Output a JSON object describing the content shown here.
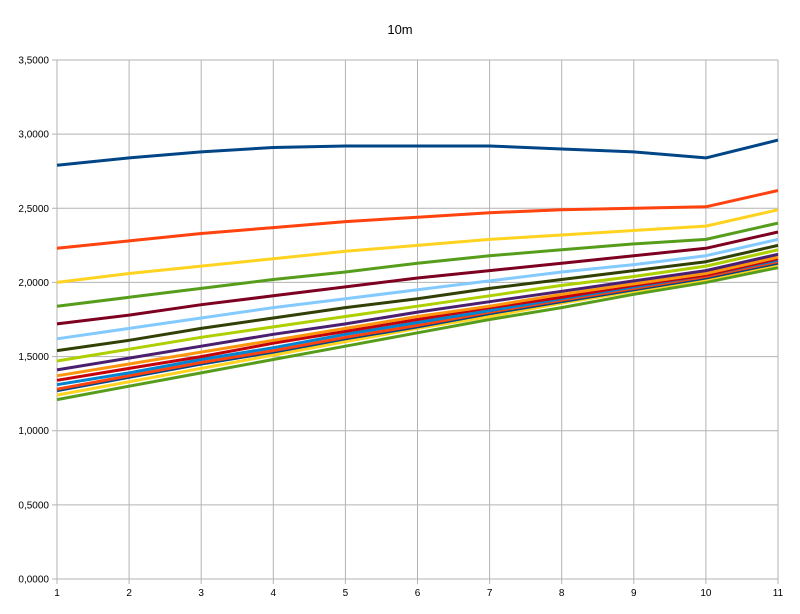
{
  "chart_data": {
    "type": "line",
    "title": "10m",
    "xlabel": "",
    "ylabel": "",
    "x": [
      1,
      2,
      3,
      4,
      5,
      6,
      7,
      8,
      9,
      10,
      11
    ],
    "x_tick_labels": [
      "1",
      "2",
      "3",
      "4",
      "5",
      "6",
      "7",
      "8",
      "9",
      "10",
      "11"
    ],
    "ylim": [
      0,
      3.5
    ],
    "y_tick_labels": [
      "0,0000",
      "0,5000",
      "1,0000",
      "1,5000",
      "2,0000",
      "2,5000",
      "3,0000",
      "3,5000"
    ],
    "y_ticks": [
      0,
      0.5,
      1.0,
      1.5,
      2.0,
      2.5,
      3.0,
      3.5
    ],
    "grid": true,
    "legend": "none",
    "series": [
      {
        "color": "#004586",
        "values": [
          2.79,
          2.84,
          2.88,
          2.91,
          2.92,
          2.92,
          2.92,
          2.9,
          2.88,
          2.84,
          2.96
        ]
      },
      {
        "color": "#ff420e",
        "values": [
          2.23,
          2.28,
          2.33,
          2.37,
          2.41,
          2.44,
          2.47,
          2.49,
          2.5,
          2.51,
          2.62
        ]
      },
      {
        "color": "#ffd320",
        "values": [
          2.0,
          2.06,
          2.11,
          2.16,
          2.21,
          2.25,
          2.29,
          2.32,
          2.35,
          2.38,
          2.49
        ]
      },
      {
        "color": "#579d1c",
        "values": [
          1.84,
          1.9,
          1.96,
          2.02,
          2.07,
          2.13,
          2.18,
          2.22,
          2.26,
          2.29,
          2.4
        ]
      },
      {
        "color": "#7e0021",
        "values": [
          1.72,
          1.78,
          1.85,
          1.91,
          1.97,
          2.03,
          2.08,
          2.13,
          2.18,
          2.23,
          2.34
        ]
      },
      {
        "color": "#83caff",
        "values": [
          1.62,
          1.69,
          1.76,
          1.83,
          1.89,
          1.95,
          2.01,
          2.07,
          2.12,
          2.18,
          2.29
        ]
      },
      {
        "color": "#314004",
        "values": [
          1.54,
          1.61,
          1.69,
          1.76,
          1.83,
          1.89,
          1.96,
          2.02,
          2.08,
          2.14,
          2.25
        ]
      },
      {
        "color": "#aecf00",
        "values": [
          1.47,
          1.55,
          1.63,
          1.7,
          1.77,
          1.84,
          1.91,
          1.98,
          2.04,
          2.11,
          2.22
        ]
      },
      {
        "color": "#4b1f6f",
        "values": [
          1.41,
          1.49,
          1.57,
          1.65,
          1.72,
          1.8,
          1.87,
          1.94,
          2.01,
          2.08,
          2.19
        ]
      },
      {
        "color": "#ff950e",
        "values": [
          1.37,
          1.45,
          1.53,
          1.61,
          1.69,
          1.77,
          1.84,
          1.92,
          1.99,
          2.06,
          2.17
        ]
      },
      {
        "color": "#c5000b",
        "values": [
          1.34,
          1.42,
          1.5,
          1.59,
          1.67,
          1.75,
          1.83,
          1.9,
          1.98,
          2.05,
          2.16
        ]
      },
      {
        "color": "#0084d1",
        "values": [
          1.31,
          1.39,
          1.48,
          1.56,
          1.65,
          1.73,
          1.81,
          1.89,
          1.97,
          2.05,
          2.15
        ]
      },
      {
        "color": "#ff420e",
        "values": [
          1.28,
          1.37,
          1.46,
          1.54,
          1.63,
          1.71,
          1.8,
          1.88,
          1.96,
          2.04,
          2.14
        ]
      },
      {
        "color": "#004586",
        "values": [
          1.27,
          1.36,
          1.45,
          1.53,
          1.62,
          1.7,
          1.79,
          1.87,
          1.95,
          2.03,
          2.13
        ]
      },
      {
        "color": "#ffd320",
        "values": [
          1.24,
          1.33,
          1.42,
          1.51,
          1.6,
          1.69,
          1.77,
          1.86,
          1.94,
          2.02,
          2.12
        ]
      },
      {
        "color": "#579d1c",
        "values": [
          1.21,
          1.3,
          1.39,
          1.48,
          1.57,
          1.66,
          1.75,
          1.83,
          1.92,
          2.0,
          2.1
        ]
      }
    ]
  }
}
